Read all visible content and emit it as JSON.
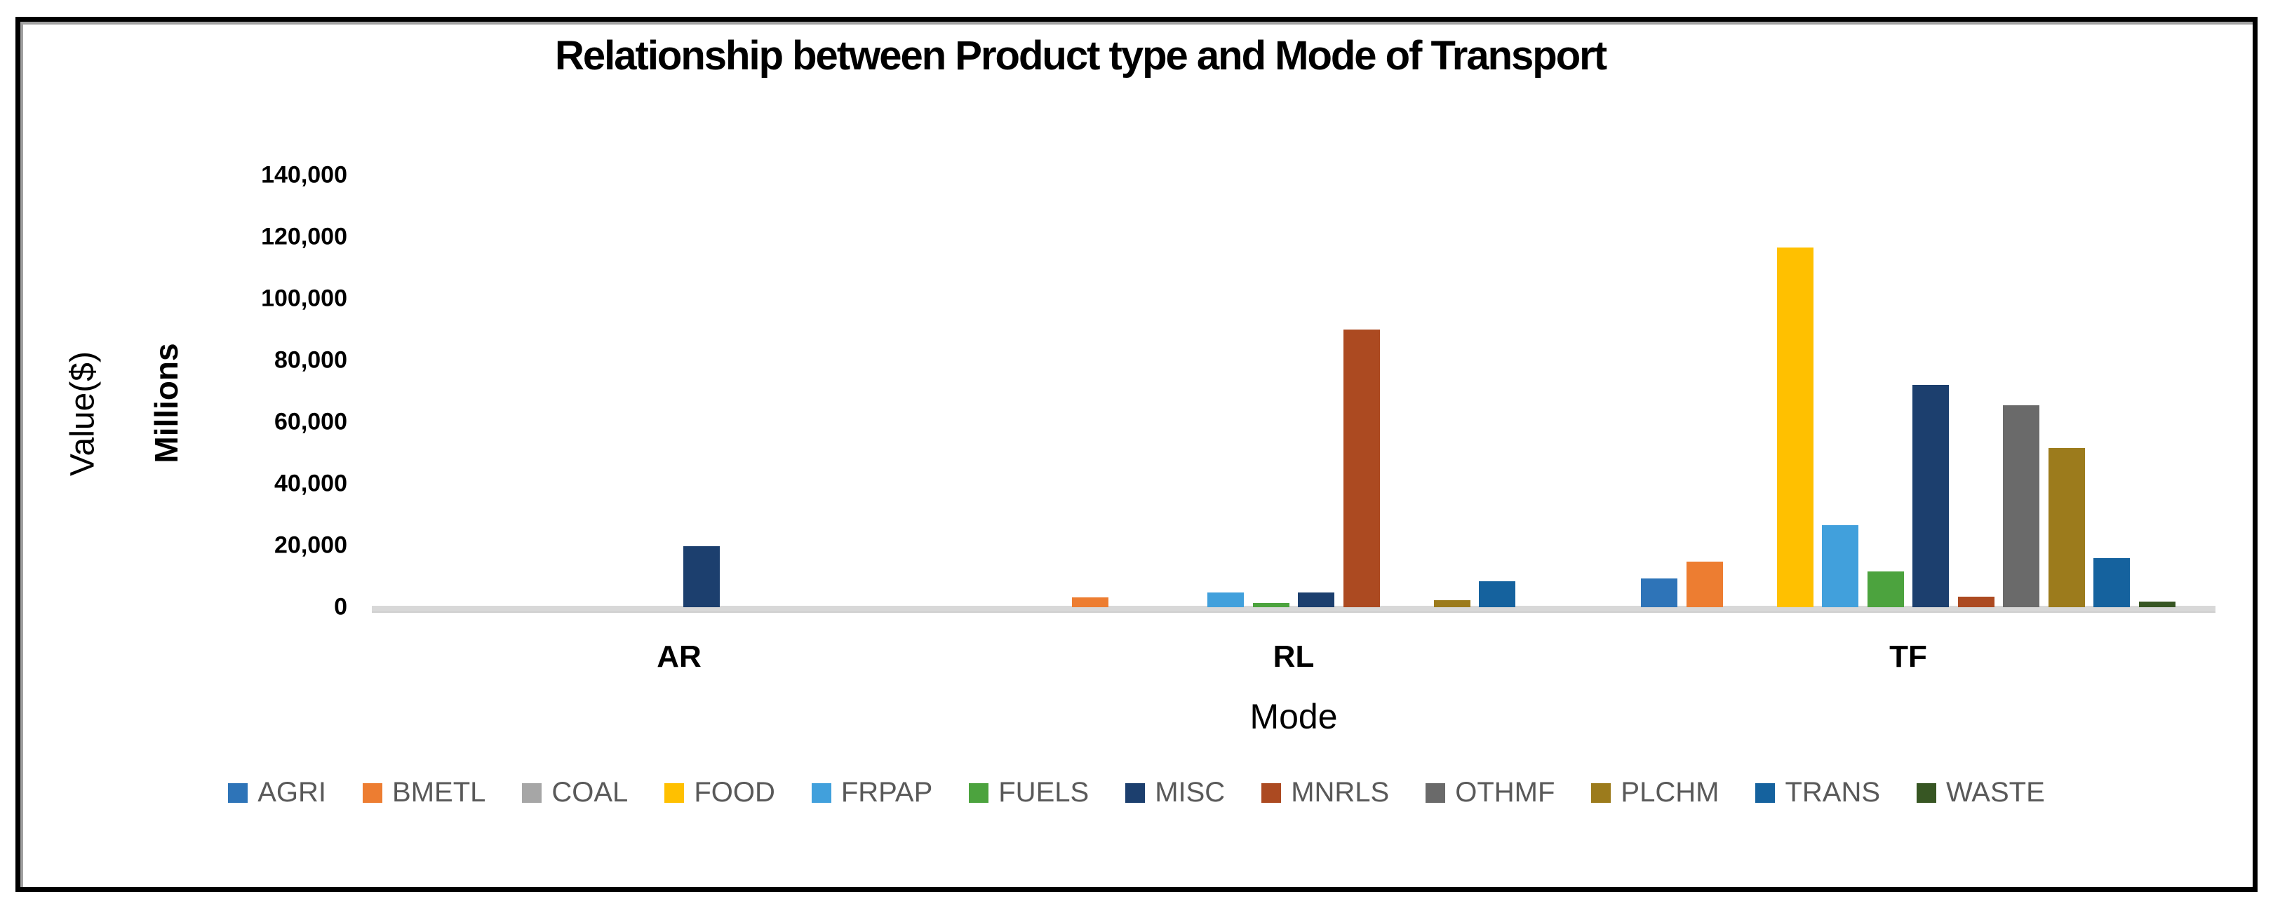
{
  "chart_data": {
    "type": "bar",
    "title": "Relationship between Product type and Mode of Transport",
    "xlabel": "Mode",
    "ylabel": "Value($)",
    "ylabel_units": "Millions",
    "categories": [
      "AR",
      "RL",
      "TF"
    ],
    "ylim": [
      0,
      140000
    ],
    "ytick_step": 20000,
    "ytick_labels": [
      "0",
      "20,000",
      "40,000",
      "60,000",
      "80,000",
      "100,000",
      "120,000",
      "140,000"
    ],
    "grid": false,
    "legend_position": "bottom",
    "axis_line_color": "#d8d8d8",
    "series": [
      {
        "name": "AGRI",
        "color": "#2e74b8",
        "values": [
          0,
          0,
          9300
        ]
      },
      {
        "name": "BMETL",
        "color": "#ed7d31",
        "values": [
          0,
          3200,
          14800
        ]
      },
      {
        "name": "COAL",
        "color": "#a6a6a6",
        "values": [
          0,
          0,
          0
        ]
      },
      {
        "name": "FOOD",
        "color": "#ffc000",
        "values": [
          0,
          0,
          116500
        ]
      },
      {
        "name": "FRPAP",
        "color": "#41a0dc",
        "values": [
          0,
          4800,
          26600
        ]
      },
      {
        "name": "FUELS",
        "color": "#4ca33e",
        "values": [
          0,
          1400,
          11500
        ]
      },
      {
        "name": "MISC",
        "color": "#1c3f6e",
        "values": [
          19800,
          4700,
          72000
        ]
      },
      {
        "name": "MNRLS",
        "color": "#ac4a21",
        "values": [
          0,
          90000,
          3300
        ]
      },
      {
        "name": "OTHMF",
        "color": "#6a6a6a",
        "values": [
          0,
          0,
          65500
        ]
      },
      {
        "name": "PLCHM",
        "color": "#9c7b1c",
        "values": [
          0,
          2200,
          51700
        ]
      },
      {
        "name": "TRANS",
        "color": "#15629e",
        "values": [
          0,
          8300,
          16000
        ]
      },
      {
        "name": "WASTE",
        "color": "#375623",
        "values": [
          0,
          0,
          1800
        ]
      }
    ]
  }
}
